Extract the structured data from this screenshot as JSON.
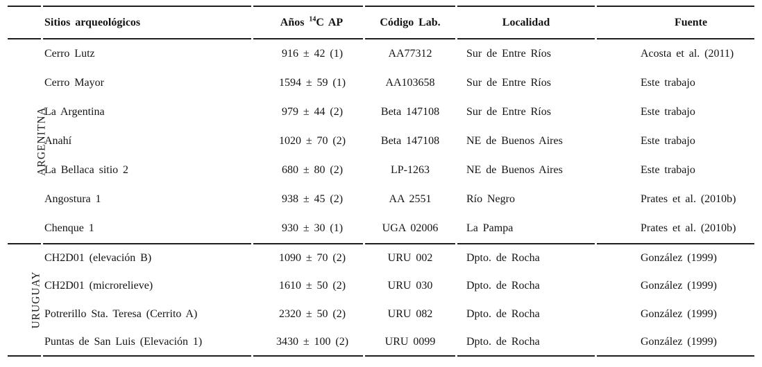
{
  "table": {
    "headers": {
      "site": "Sitios arqueológicos",
      "age_prefix": "Años ",
      "age_sup": "14",
      "age_suffix": "C AP",
      "lab_code": "Código Lab.",
      "locality": "Localidad",
      "source": "Fuente"
    },
    "sections": [
      {
        "country": "ARGENITNA",
        "rows": [
          {
            "site": "Cerro Lutz",
            "age": "916 ± 42 (1)",
            "lab_code": "AA77312",
            "locality": "Sur de Entre Ríos",
            "source": "Acosta et al. (2011)"
          },
          {
            "site": "Cerro Mayor",
            "age": "1594 ± 59 (1)",
            "lab_code": "AA103658",
            "locality": "Sur de Entre Ríos",
            "source": "Este trabajo"
          },
          {
            "site": "La Argentina",
            "age": "979 ± 44 (2)",
            "lab_code": "Beta 147108",
            "locality": "Sur de Entre Ríos",
            "source": "Este trabajo"
          },
          {
            "site": "Anahí",
            "age": "1020 ± 70 (2)",
            "lab_code": "Beta 147108",
            "locality": "NE de Buenos Aires",
            "source": "Este trabajo"
          },
          {
            "site": "La Bellaca sitio 2",
            "age": "680 ± 80 (2)",
            "lab_code": "LP-1263",
            "locality": "NE de Buenos Aires",
            "source": "Este trabajo"
          },
          {
            "site": "Angostura 1",
            "age": "938 ± 45 (2)",
            "lab_code": "AA 2551",
            "locality": "Río Negro",
            "source": "Prates et al. (2010b)"
          },
          {
            "site": "Chenque 1",
            "age": "930 ± 30 (1)",
            "lab_code": "UGA 02006",
            "locality": "La Pampa",
            "source": "Prates et al. (2010b)"
          }
        ]
      },
      {
        "country": "URUGUAY",
        "rows": [
          {
            "site": "CH2D01 (elevación B)",
            "age": "1090 ± 70 (2)",
            "lab_code": "URU 002",
            "locality": "Dpto. de Rocha",
            "source": "González (1999)"
          },
          {
            "site": "CH2D01 (microrelieve)",
            "age": "1610 ± 50 (2)",
            "lab_code": "URU 030",
            "locality": "Dpto. de Rocha",
            "source": "González (1999)"
          },
          {
            "site": "Potrerillo Sta. Teresa (Cerrito A)",
            "age": "2320 ± 50 (2)",
            "lab_code": "URU 082",
            "locality": "Dpto. de Rocha",
            "source": "González (1999)"
          },
          {
            "site": "Puntas de San Luis (Elevación 1)",
            "age": "3430 ± 100 (2)",
            "lab_code": "URU 0099",
            "locality": "Dpto. de Rocha",
            "source": "González (1999)"
          }
        ]
      }
    ]
  },
  "colors": {
    "text": "#141414",
    "rule": "#1d1d1d",
    "background": "#ffffff"
  }
}
